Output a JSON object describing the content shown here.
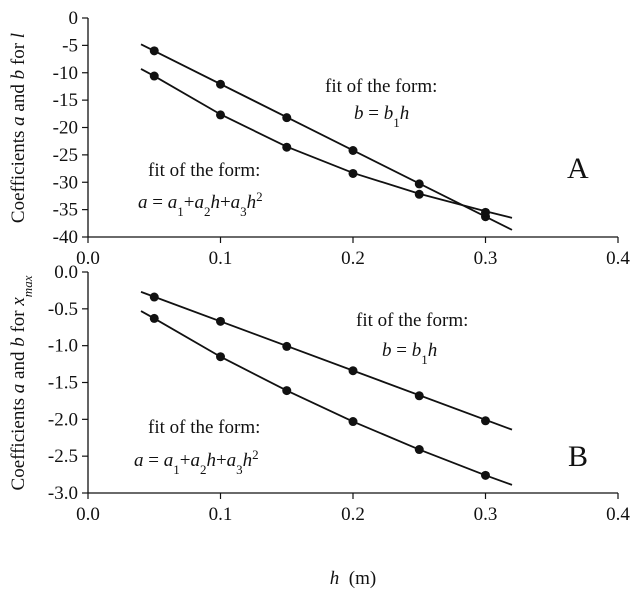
{
  "chart_data": [
    {
      "type": "line",
      "panel_label": "A",
      "y_label": [
        "Coefficients ",
        "a",
        " and ",
        "b",
        " for ",
        "l"
      ],
      "xlim": [
        0,
        0.4
      ],
      "xticks": [
        {
          "value": 0,
          "label": "0.0"
        },
        0.1,
        0.2,
        0.3,
        0.4
      ],
      "ylim": [
        -40,
        0
      ],
      "yticks": [
        0,
        -5,
        -10,
        -15,
        -20,
        -25,
        -30,
        -35,
        -40
      ],
      "annotations": [
        {
          "line1": "fit of the form:",
          "line2": [
            "b",
            " = ",
            "b",
            "1",
            "h"
          ]
        },
        {
          "line1": "fit of the form:",
          "line2": [
            "a",
            " = ",
            "a",
            "1",
            "+",
            "a",
            "2",
            "h",
            "+",
            "a",
            "3",
            "h",
            "2"
          ]
        }
      ],
      "series": [
        {
          "color": "#111111",
          "x": [
            0.05,
            0.1,
            0.15,
            0.2,
            0.25,
            0.3
          ],
          "values": [
            -6.0,
            -12.1,
            -18.2,
            -24.2,
            -30.3,
            -36.3
          ],
          "fit_x": [
            0.04,
            0.32
          ],
          "fit_values": [
            -4.8,
            -38.7
          ]
        },
        {
          "color": "#111111",
          "x": [
            0.05,
            0.1,
            0.15,
            0.2,
            0.25,
            0.3
          ],
          "values": [
            -10.6,
            -17.7,
            -23.6,
            -28.4,
            -32.2,
            -35.5
          ],
          "fit_x": [
            0.04,
            0.05,
            0.1,
            0.15,
            0.2,
            0.25,
            0.3,
            0.32
          ],
          "fit_values": [
            -9.3,
            -10.6,
            -17.6,
            -23.5,
            -28.3,
            -32.1,
            -35.3,
            -36.5
          ]
        }
      ]
    },
    {
      "type": "line",
      "panel_label": "B",
      "y_label": [
        "Coefficients ",
        "a",
        " and ",
        "b",
        " for ",
        "x",
        "max"
      ],
      "x_label": [
        "h",
        "  (m)"
      ],
      "xlim": [
        0,
        0.4
      ],
      "xticks": [
        {
          "value": 0,
          "label": "0.0"
        },
        0.1,
        0.2,
        0.3,
        0.4
      ],
      "ylim": [
        -3,
        0
      ],
      "yticks": [
        {
          "value": 0,
          "label": "0.0"
        },
        -0.5,
        {
          "value": -1,
          "label": "-1.0"
        },
        -1.5,
        {
          "value": -2,
          "label": "-2.0"
        },
        -2.5,
        {
          "value": -3,
          "label": "-3.0"
        }
      ],
      "annotations": [
        {
          "line1": "fit of the form:",
          "line2": [
            "b",
            " = ",
            "b",
            "1",
            "h"
          ]
        },
        {
          "line1": "fit of the form:",
          "line2": [
            "a",
            " = ",
            "a",
            "1",
            "+",
            "a",
            "2",
            "h",
            "+",
            "a",
            "3",
            "h",
            "2"
          ]
        }
      ],
      "series": [
        {
          "color": "#111111",
          "x": [
            0.05,
            0.1,
            0.15,
            0.2,
            0.25,
            0.3
          ],
          "values": [
            -0.34,
            -0.67,
            -1.01,
            -1.34,
            -1.68,
            -2.02
          ],
          "fit_x": [
            0.04,
            0.32
          ],
          "fit_values": [
            -0.27,
            -2.14
          ]
        },
        {
          "color": "#111111",
          "x": [
            0.05,
            0.1,
            0.15,
            0.2,
            0.25,
            0.3
          ],
          "values": [
            -0.63,
            -1.15,
            -1.61,
            -2.03,
            -2.41,
            -2.76
          ],
          "fit_x": [
            0.04,
            0.05,
            0.1,
            0.15,
            0.2,
            0.25,
            0.3,
            0.32
          ],
          "fit_values": [
            -0.53,
            -0.63,
            -1.15,
            -1.61,
            -2.03,
            -2.41,
            -2.76,
            -2.89
          ]
        }
      ]
    }
  ]
}
